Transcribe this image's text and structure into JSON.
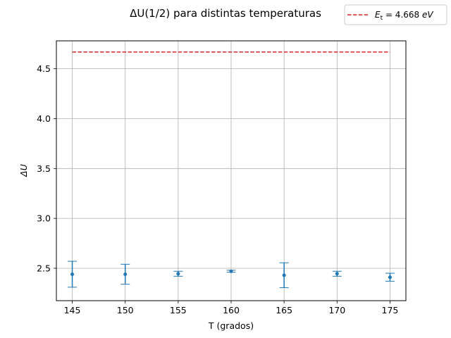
{
  "chart_data": {
    "type": "scatter",
    "title": "ΔU(1/2) para distintas temperaturas",
    "xlabel": "T (grados)",
    "ylabel": "ΔU",
    "xlim": [
      143.5,
      176.5
    ],
    "ylim": [
      2.175,
      4.78
    ],
    "xticks": [
      145,
      150,
      155,
      160,
      165,
      170,
      175
    ],
    "xtick_labels": [
      "145",
      "150",
      "155",
      "160",
      "165",
      "170",
      "175"
    ],
    "yticks": [
      2.5,
      3.0,
      3.5,
      4.0,
      4.5
    ],
    "ytick_labels": [
      "2.5",
      "3.0",
      "3.5",
      "4.0",
      "4.5"
    ],
    "grid": true,
    "legend_position": "top-right (outside plot)",
    "series": [
      {
        "kind": "errorbar",
        "color": "#1f77b4",
        "x": [
          145,
          150,
          155,
          160,
          165,
          170,
          175
        ],
        "y": [
          2.44,
          2.44,
          2.445,
          2.47,
          2.43,
          2.445,
          2.41
        ],
        "yerr": [
          0.13,
          0.1,
          0.025,
          0.01,
          0.125,
          0.025,
          0.04
        ]
      },
      {
        "kind": "hline",
        "name": "E_t = 4.668 eV",
        "legend_label": {
          "base": "E",
          "sub": "t",
          "rest": " = 4.668 ",
          "unit": "eV"
        },
        "color": "#d62728",
        "style": "dashed",
        "y": 4.668,
        "x_start": 145,
        "x_end": 175
      }
    ]
  }
}
